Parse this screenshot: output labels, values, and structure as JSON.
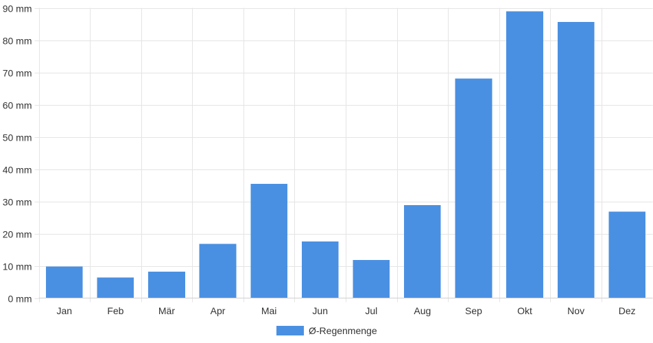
{
  "chart_data": {
    "type": "bar",
    "categories": [
      "Jan",
      "Feb",
      "Mär",
      "Apr",
      "Mai",
      "Jun",
      "Jul",
      "Aug",
      "Sep",
      "Okt",
      "Nov",
      "Dez"
    ],
    "series": [
      {
        "name": "Ø-Regenmenge",
        "values": [
          9.8,
          6.4,
          8.2,
          16.8,
          35.4,
          17.6,
          11.8,
          28.8,
          68.1,
          88.9,
          85.6,
          26.8
        ],
        "color": "#4a90e2"
      }
    ],
    "y_unit": "mm",
    "yticks": [
      0,
      10,
      20,
      30,
      40,
      50,
      60,
      70,
      80,
      90
    ],
    "ylim": [
      0,
      90
    ],
    "grid": true,
    "legend_position": "bottom"
  }
}
